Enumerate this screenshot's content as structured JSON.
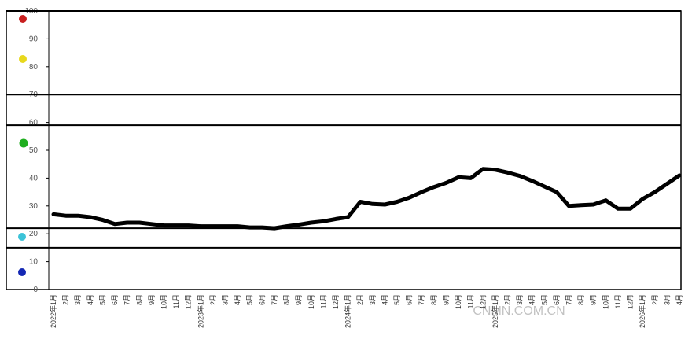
{
  "chart_data": {
    "type": "line",
    "categories": [
      "2022年1月",
      "2月",
      "3月",
      "4月",
      "5月",
      "6月",
      "7月",
      "8月",
      "9月",
      "10月",
      "11月",
      "12月",
      "2023年1月",
      "2月",
      "3月",
      "4月",
      "5月",
      "6月",
      "7月",
      "8月",
      "9月",
      "10月",
      "11月",
      "12月",
      "2024年1月",
      "2月",
      "3月",
      "4月",
      "5月",
      "6月",
      "7月",
      "8月",
      "9月",
      "10月",
      "11月",
      "12月",
      "2025年1月",
      "2月",
      "3月",
      "4月",
      "5月",
      "6月",
      "7月",
      "8月",
      "9月",
      "10月",
      "11月",
      "12月",
      "2026年1月",
      "2月",
      "3月",
      "4月"
    ],
    "values": [
      27,
      26.5,
      26.5,
      26,
      25,
      23.5,
      24,
      24,
      23.5,
      23,
      23,
      23,
      22.7,
      22.7,
      22.7,
      22.7,
      22.3,
      22.3,
      22,
      22.7,
      23.3,
      24,
      24.5,
      25.3,
      26,
      31.5,
      30.7,
      30.5,
      31.5,
      33,
      35,
      36.8,
      38.3,
      40.3,
      40,
      43.3,
      43,
      42,
      40.8,
      39,
      37,
      35,
      30,
      30.3,
      30.5,
      32,
      29,
      29,
      32.5,
      35,
      38,
      41
    ],
    "color": "#000000",
    "ylim": [
      0,
      100
    ],
    "yticks": [
      0,
      10,
      20,
      30,
      40,
      50,
      60,
      70,
      80,
      90,
      100
    ],
    "reference_lines": [
      100,
      70,
      59,
      22,
      15
    ],
    "watermark": "CNMN.COM.CN"
  }
}
